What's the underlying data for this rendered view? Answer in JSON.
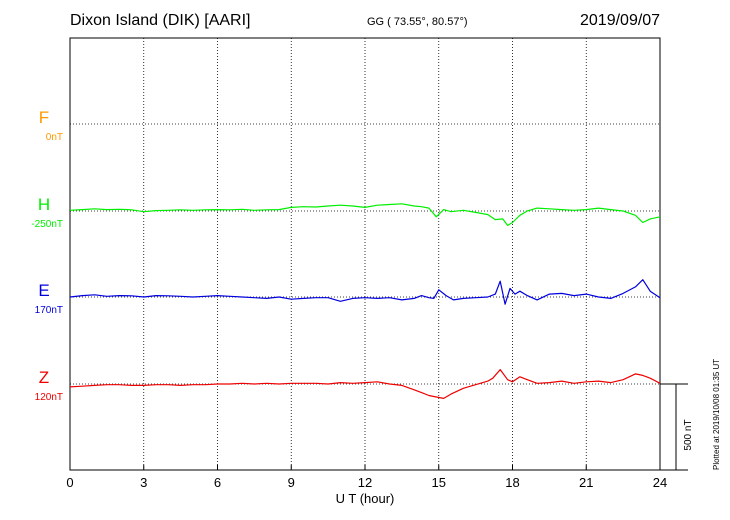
{
  "header": {
    "station": "Dixon Island (DIK)  [AARI]",
    "coords": "GG ( 73.55°,  80.57°)",
    "date": "2019/09/07"
  },
  "footer": {
    "plotted": "Plotted at 2019/10/08 01:35 UT"
  },
  "chart_data": {
    "type": "line",
    "xlabel": "U T (hour)",
    "xlim": [
      0,
      24
    ],
    "xticks": [
      "0",
      "3",
      "6",
      "9",
      "12",
      "15",
      "18",
      "21",
      "24"
    ],
    "scale_bar": {
      "label": "500 nT",
      "value_nT": 500
    },
    "grid": true,
    "series": [
      {
        "name": "F",
        "baseline": "0nT",
        "color": "#ff9900",
        "x": [],
        "y": []
      },
      {
        "name": "H",
        "baseline": "-250nT",
        "color": "#00ee00",
        "x": [
          0,
          0.5,
          1,
          1.5,
          2,
          2.5,
          3,
          3.5,
          4,
          4.5,
          5,
          5.5,
          6,
          6.5,
          7,
          7.5,
          8,
          8.5,
          9,
          9.5,
          10,
          10.5,
          11,
          11.5,
          12,
          12.5,
          13,
          13.5,
          14,
          14.3,
          14.6,
          14.9,
          15.2,
          15.5,
          16,
          16.5,
          17,
          17.3,
          17.6,
          17.8,
          18,
          18.3,
          18.6,
          19,
          19.5,
          20,
          20.5,
          21,
          21.5,
          22,
          22.5,
          23,
          23.3,
          23.6,
          24
        ],
        "y": [
          5,
          10,
          15,
          10,
          12,
          8,
          -5,
          3,
          5,
          8,
          5,
          8,
          10,
          8,
          12,
          5,
          8,
          10,
          25,
          30,
          28,
          35,
          40,
          35,
          25,
          40,
          45,
          50,
          35,
          30,
          20,
          -40,
          10,
          -5,
          5,
          -10,
          -25,
          -60,
          -55,
          -100,
          -80,
          -30,
          0,
          20,
          15,
          10,
          5,
          10,
          20,
          10,
          0,
          -30,
          -80,
          -55,
          -40
        ]
      },
      {
        "name": "E",
        "baseline": "170nT",
        "color": "#0000dd",
        "x": [
          0,
          0.5,
          1,
          1.5,
          2,
          2.5,
          3,
          3.5,
          4,
          4.5,
          5,
          5.5,
          6,
          6.5,
          7,
          7.5,
          8,
          8.5,
          9,
          9.5,
          10,
          10.5,
          11,
          11.5,
          12,
          12.5,
          13,
          13.5,
          14,
          14.3,
          14.6,
          14.8,
          15,
          15.3,
          15.6,
          16,
          16.5,
          17,
          17.3,
          17.5,
          17.7,
          17.9,
          18.1,
          18.3,
          18.6,
          19,
          19.5,
          20,
          20.5,
          21,
          21.5,
          22,
          22.5,
          23,
          23.3,
          23.6,
          24
        ],
        "y": [
          0,
          10,
          15,
          5,
          10,
          8,
          0,
          10,
          8,
          5,
          0,
          5,
          10,
          5,
          0,
          -5,
          -10,
          0,
          -15,
          -10,
          -5,
          -5,
          -30,
          -10,
          -5,
          -10,
          -5,
          -20,
          -10,
          10,
          -5,
          -10,
          50,
          10,
          -20,
          -10,
          -5,
          0,
          20,
          110,
          -50,
          60,
          20,
          40,
          10,
          -20,
          20,
          25,
          10,
          20,
          0,
          -10,
          25,
          70,
          120,
          40,
          -5
        ]
      },
      {
        "name": "Z",
        "baseline": "120nT",
        "color": "#ee0000",
        "x": [
          0,
          0.5,
          1,
          1.5,
          2,
          2.5,
          3,
          3.5,
          4,
          4.5,
          5,
          5.5,
          6,
          6.5,
          7,
          7.5,
          8,
          8.5,
          9,
          9.5,
          10,
          10.5,
          11,
          11.5,
          12,
          12.5,
          13,
          13.5,
          14,
          14.3,
          14.6,
          14.9,
          15.2,
          15.5,
          16,
          16.5,
          17,
          17.2,
          17.5,
          17.8,
          18,
          18.3,
          18.6,
          19,
          19.5,
          20,
          20.5,
          21,
          21.5,
          22,
          22.5,
          23,
          23.3,
          23.6,
          24
        ],
        "y": [
          -20,
          -15,
          -10,
          -5,
          -5,
          -10,
          -10,
          -5,
          -5,
          -10,
          -5,
          -5,
          0,
          0,
          5,
          0,
          5,
          0,
          5,
          5,
          5,
          0,
          10,
          5,
          10,
          15,
          0,
          -10,
          -40,
          -60,
          -80,
          -90,
          -100,
          -70,
          -30,
          -5,
          20,
          40,
          100,
          30,
          15,
          50,
          30,
          5,
          10,
          20,
          5,
          15,
          20,
          10,
          30,
          70,
          60,
          40,
          5
        ]
      }
    ]
  }
}
